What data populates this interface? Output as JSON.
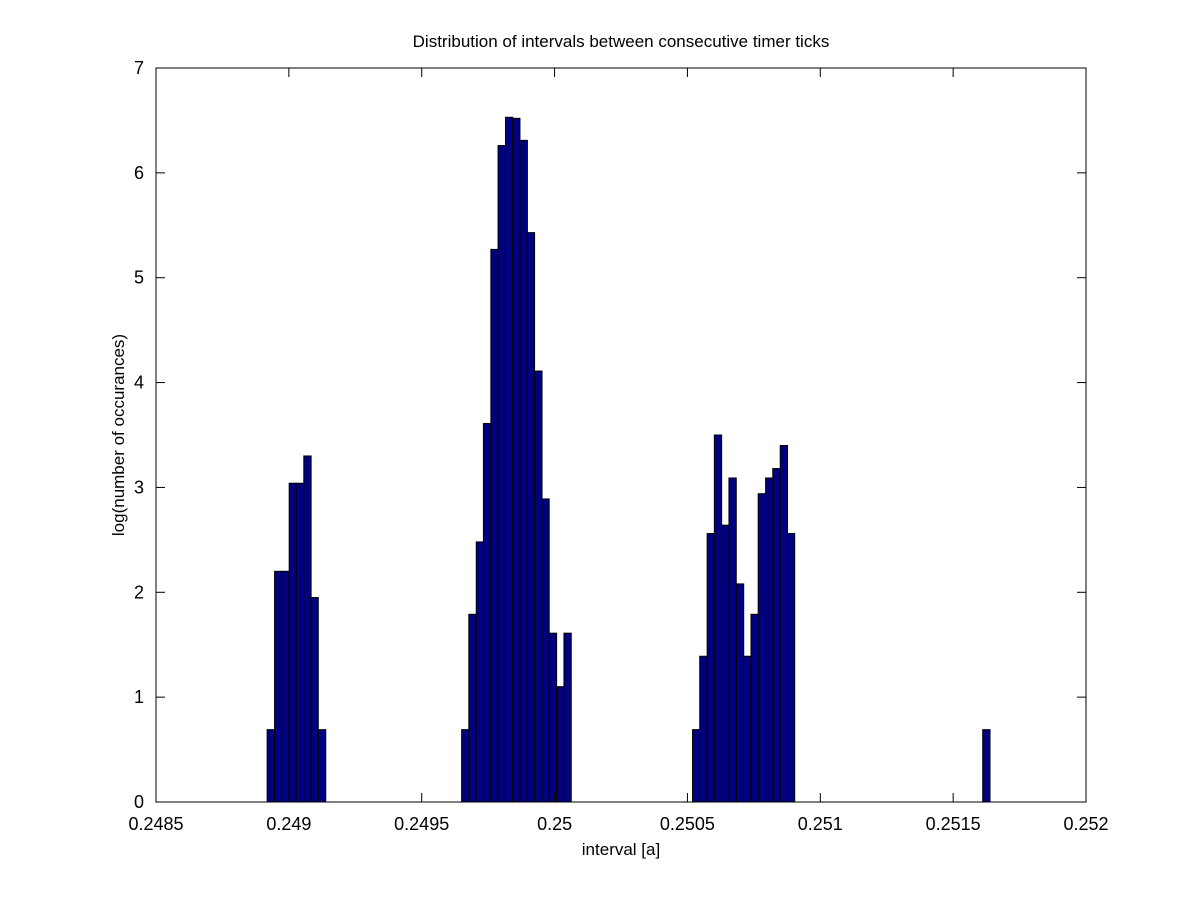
{
  "chart_data": {
    "type": "bar",
    "title": "Distribution of intervals between consecutive timer ticks",
    "xlabel": "interval [a]",
    "ylabel": "log(number of occurances)",
    "xlim": [
      0.2485,
      0.252
    ],
    "ylim": [
      0,
      7
    ],
    "xticks": [
      "0.2485",
      "0.249",
      "0.2495",
      "0.25",
      "0.2505",
      "0.251",
      "0.2515",
      "0.252"
    ],
    "yticks": [
      "0",
      "1",
      "2",
      "3",
      "4",
      "5",
      "6",
      "7"
    ],
    "grid": false,
    "bar_width": 2.75e-05,
    "bar_color": "#000080",
    "bar_edge_color": "#000000",
    "x": [
      0.248932,
      0.24896,
      0.248987,
      0.249015,
      0.249042,
      0.24907,
      0.249097,
      0.249125,
      0.249664,
      0.249691,
      0.249719,
      0.249746,
      0.249774,
      0.249801,
      0.249829,
      0.249856,
      0.249884,
      0.249911,
      0.249939,
      0.249966,
      0.249994,
      0.250021,
      0.250049,
      0.250076,
      0.250533,
      0.25056,
      0.250588,
      0.250615,
      0.250643,
      0.25067,
      0.250698,
      0.250725,
      0.250753,
      0.25078,
      0.250808,
      0.250835,
      0.250863,
      0.25089,
      0.251625
    ],
    "values": [
      0.69,
      2.2,
      2.2,
      3.04,
      3.04,
      3.3,
      1.95,
      0.69,
      0.69,
      1.79,
      2.48,
      3.61,
      5.27,
      6.26,
      6.53,
      6.52,
      6.31,
      5.43,
      4.11,
      2.89,
      1.61,
      1.1,
      1.61,
      0.0,
      0.69,
      1.39,
      2.56,
      3.5,
      2.64,
      3.09,
      2.08,
      1.39,
      1.79,
      2.94,
      3.09,
      3.18,
      3.4,
      2.56,
      0.69
    ]
  }
}
